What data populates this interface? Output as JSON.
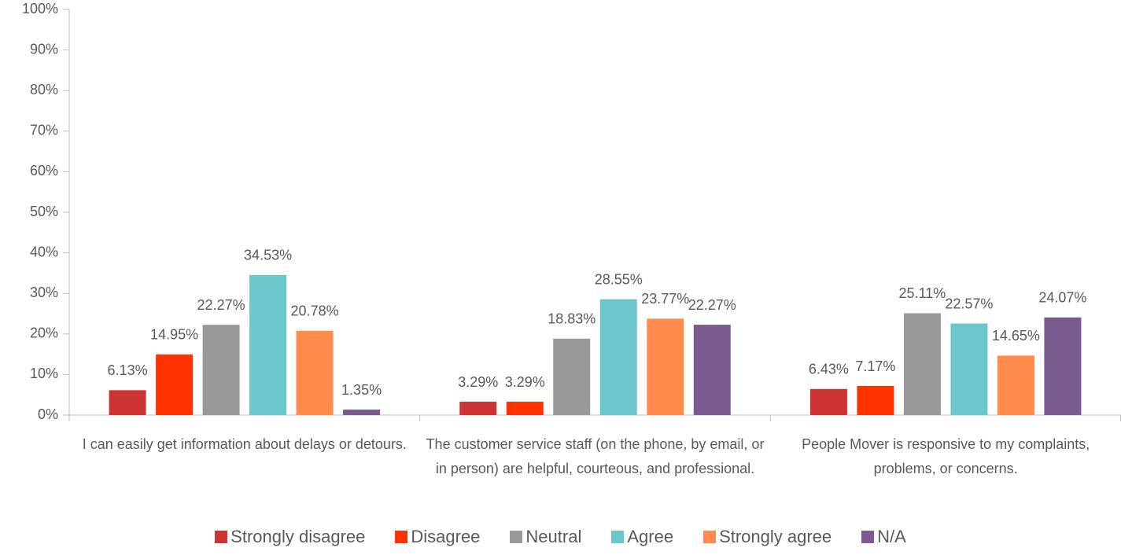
{
  "chart_data": {
    "type": "bar",
    "categories": [
      "I can easily get information about delays or detours.",
      "The customer service staff (on the phone, by email, or in person) are helpful, courteous, and professional.",
      "People Mover is responsive to my complaints, problems, or concerns."
    ],
    "series": [
      {
        "name": "Strongly disagree",
        "color": "#cc3333",
        "values": [
          6.13,
          3.29,
          6.43
        ],
        "value_labels": [
          "6.13%",
          "3.29%",
          "6.43%"
        ]
      },
      {
        "name": "Disagree",
        "color": "#ff3300",
        "values": [
          14.95,
          3.29,
          7.17
        ],
        "value_labels": [
          "14.95%",
          "3.29%",
          "7.17%"
        ]
      },
      {
        "name": "Neutral",
        "color": "#999999",
        "values": [
          22.27,
          18.83,
          25.11
        ],
        "value_labels": [
          "22.27%",
          "18.83%",
          "25.11%"
        ]
      },
      {
        "name": "Agree",
        "color": "#6cc7cc",
        "values": [
          34.53,
          28.55,
          22.57
        ],
        "value_labels": [
          "34.53%",
          "28.55%",
          "22.57%"
        ]
      },
      {
        "name": "Strongly agree",
        "color": "#ff8c4d",
        "values": [
          20.78,
          23.77,
          14.65
        ],
        "value_labels": [
          "20.78%",
          "23.77%",
          "14.65%"
        ]
      },
      {
        "name": "N/A",
        "color": "#7a5b8f",
        "values": [
          1.35,
          22.27,
          24.07
        ],
        "value_labels": [
          "1.35%",
          "22.27%",
          "24.07%"
        ]
      }
    ],
    "ylim": [
      0,
      100
    ],
    "yticks": [
      {
        "value": 0,
        "label": "0%"
      },
      {
        "value": 10,
        "label": "10%"
      },
      {
        "value": 20,
        "label": "20%"
      },
      {
        "value": 30,
        "label": "30%"
      },
      {
        "value": 40,
        "label": "40%"
      },
      {
        "value": 50,
        "label": "50%"
      },
      {
        "value": 60,
        "label": "60%"
      },
      {
        "value": 70,
        "label": "70%"
      },
      {
        "value": 80,
        "label": "80%"
      },
      {
        "value": 90,
        "label": "90%"
      },
      {
        "value": 100,
        "label": "100%"
      }
    ],
    "grid": false,
    "legend": "bottom"
  }
}
